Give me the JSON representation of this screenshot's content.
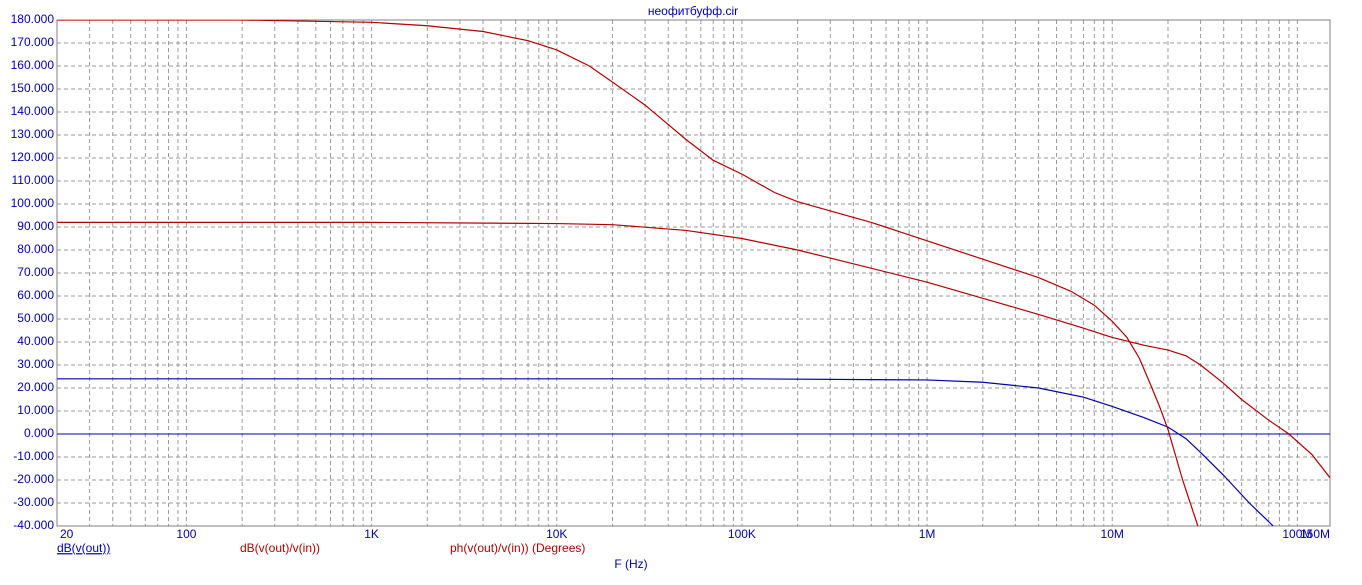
{
  "chart_data": {
    "type": "line",
    "title": "неофитбуфф.cir",
    "xlabel": "F (Hz)",
    "xscale": "log",
    "grid": true,
    "xlim": [
      20,
      150000000
    ],
    "xticks": [
      20,
      100,
      {
        "value": 1000,
        "label": "1K"
      },
      {
        "value": 10000,
        "label": "10K"
      },
      {
        "value": 100000,
        "label": "100K"
      },
      {
        "value": 1000000,
        "label": "1M"
      },
      {
        "value": 10000000,
        "label": "10M"
      },
      {
        "value": 100000000,
        "label": "100M"
      },
      {
        "value": 150000000,
        "label": "150M"
      }
    ],
    "ylim": [
      -40,
      180
    ],
    "yticks": [
      {
        "value": -40,
        "label": "-40.000"
      },
      {
        "value": -30,
        "label": "-30.000"
      },
      {
        "value": -20,
        "label": "-20.000"
      },
      {
        "value": -10,
        "label": "-10.000"
      },
      {
        "value": 0,
        "label": "0.000"
      },
      {
        "value": 10,
        "label": "10.000"
      },
      {
        "value": 20,
        "label": "20.000"
      },
      {
        "value": 30,
        "label": "30.000"
      },
      {
        "value": 40,
        "label": "40.000"
      },
      {
        "value": 50,
        "label": "50.000"
      },
      {
        "value": 60,
        "label": "60.000"
      },
      {
        "value": 70,
        "label": "70.000"
      },
      {
        "value": 80,
        "label": "80.000"
      },
      {
        "value": 90,
        "label": "90.000"
      },
      {
        "value": 100,
        "label": "100.000"
      },
      {
        "value": 110,
        "label": "110.000"
      },
      {
        "value": 120,
        "label": "120.000"
      },
      {
        "value": 130,
        "label": "130.000"
      },
      {
        "value": 140,
        "label": "140.000"
      },
      {
        "value": 150,
        "label": "150.000"
      },
      {
        "value": 160,
        "label": "160.000"
      },
      {
        "value": 170,
        "label": "170.000"
      },
      {
        "value": 180,
        "label": "180.000"
      }
    ],
    "series": [
      {
        "name": "dB(v(out))",
        "color": "#0000a8",
        "x": [
          20,
          1000,
          100000,
          1000000,
          2000000,
          4000000,
          7000000,
          10000000,
          15000000,
          20000000,
          25000000,
          30000000,
          40000000,
          55000000,
          74000000
        ],
        "values": [
          24,
          24,
          24,
          23.5,
          22.5,
          20,
          16,
          12,
          7,
          3,
          -2,
          -8,
          -18,
          -30,
          -40
        ]
      },
      {
        "name": "dB(v(out)/v(in))",
        "color": "#b00000",
        "x": [
          20,
          1000,
          10000,
          20000,
          50000,
          100000,
          200000,
          400000,
          1000000,
          2000000,
          4000000,
          7000000,
          10000000,
          15000000,
          20000000,
          25000000,
          30000000,
          40000000,
          50000000,
          70000000,
          90000000,
          120000000,
          150000000
        ],
        "values": [
          92,
          92,
          91.5,
          91,
          88.5,
          85,
          80,
          74,
          66,
          59,
          52,
          46,
          42,
          38.5,
          36.5,
          34,
          30,
          22,
          15,
          6,
          0,
          -9,
          -19
        ]
      },
      {
        "name": "ph(v(out)/v(in)) (Degrees)",
        "color": "#b00000",
        "x": [
          20,
          200,
          1000,
          2000,
          4000,
          7000,
          10000,
          15000,
          20000,
          30000,
          50000,
          70000,
          100000,
          150000,
          200000,
          300000,
          500000,
          1000000,
          2000000,
          4000000,
          6000000,
          8000000,
          10000000,
          12000000,
          14000000,
          16000000,
          18000000,
          20000000,
          24000000,
          29000000
        ],
        "values": [
          180,
          180,
          179,
          177.5,
          175,
          171,
          167,
          160,
          153,
          143,
          128,
          119,
          113,
          105,
          101,
          97,
          92,
          84,
          76,
          68,
          62,
          56,
          49,
          42,
          33,
          22,
          12,
          2,
          -20,
          -40
        ]
      }
    ]
  }
}
